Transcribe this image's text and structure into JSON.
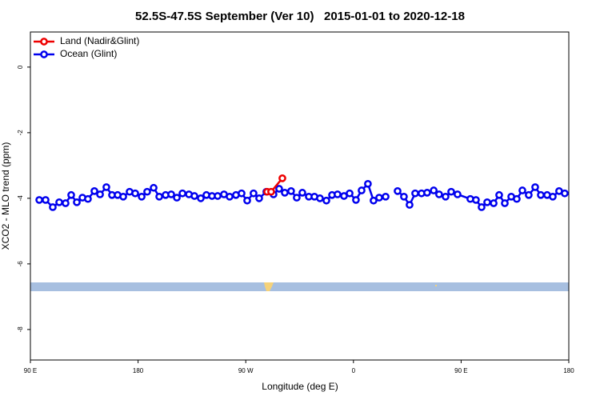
{
  "chart_data": {
    "type": "line",
    "title": "52.5S-47.5S September (Ver 10)   2015-01-01 to 2020-12-18",
    "xlabel": "Longitude (deg E)",
    "ylabel": "XCO2 - MLO trend (ppm)",
    "xlim": [
      90,
      540
    ],
    "ylim": [
      -8.93,
      1.07
    ],
    "xticks": [
      {
        "value": 90,
        "label": "90 E"
      },
      180,
      {
        "value": 270,
        "label": "90 W"
      },
      {
        "value": 360,
        "label": "0"
      },
      {
        "value": 450,
        "label": "90 E"
      },
      {
        "value": 540,
        "label": "180"
      }
    ],
    "yticks": [
      0,
      -2,
      -4,
      -6,
      -8
    ],
    "legend": "top-left",
    "series": [
      {
        "name": "Land (Nadir&Glint)",
        "color": "#ee0000",
        "x": [
          287.9,
          291.2,
          300.6
        ],
        "values": [
          -3.8,
          -3.8,
          -3.39
        ]
      },
      {
        "name": "Ocean (Glint)",
        "color": "#0000ee",
        "x": [
          97.4,
          102.7,
          108.7,
          114.1,
          119.4,
          124.1,
          128.8,
          133.5,
          138.1,
          143.5,
          148.2,
          153.5,
          158.2,
          162.9,
          167.6,
          172.9,
          177.6,
          183.0,
          187.6,
          193.0,
          197.7,
          203.0,
          207.7,
          212.4,
          217.1,
          222.5,
          227.1,
          232.4,
          237.1,
          241.8,
          246.5,
          251.8,
          256.5,
          261.8,
          266.5,
          271.2,
          276.5,
          281.2,
          287.2,
          293.2,
          297.9,
          302.6,
          307.9,
          312.6,
          317.3,
          322.7,
          327.4,
          332.0,
          337.4,
          342.1,
          346.7,
          352.1,
          356.8,
          362.1,
          366.8,
          372.1,
          376.8,
          381.5,
          386.9,
          392.0,
          396.9,
          402.2,
          406.9,
          411.6,
          416.9,
          421.6,
          427.1,
          431.6,
          437.0,
          441.7,
          447.0,
          457.7,
          462.4,
          467.1,
          471.8,
          477.2,
          481.8,
          486.5,
          491.9,
          496.5,
          501.2,
          506.5,
          511.9,
          516.6,
          521.9,
          526.6,
          531.9,
          536.6
        ],
        "values": [
          -4.05,
          -4.05,
          -4.27,
          -4.12,
          -4.15,
          -3.9,
          -4.12,
          -3.98,
          -4.02,
          -3.78,
          -3.88,
          -3.66,
          -3.9,
          -3.9,
          -3.95,
          -3.8,
          -3.85,
          -3.95,
          -3.8,
          -3.68,
          -3.95,
          -3.9,
          -3.88,
          -3.98,
          -3.85,
          -3.88,
          -3.93,
          -4.0,
          -3.9,
          -3.93,
          -3.93,
          -3.88,
          -3.95,
          -3.9,
          -3.85,
          -4.07,
          -3.85,
          -4.0,
          -3.8,
          -3.88,
          -3.71,
          -3.83,
          -3.78,
          -3.98,
          -3.83,
          -3.95,
          -3.95,
          -4.0,
          -4.07,
          -3.9,
          -3.88,
          -3.93,
          -3.85,
          -4.05,
          -3.76,
          -3.56,
          -4.07,
          -3.98,
          -3.95,
          null,
          -3.78,
          -3.95,
          -4.2,
          -3.85,
          -3.85,
          -3.83,
          -3.76,
          -3.88,
          -3.95,
          -3.8,
          -3.88,
          -4.02,
          -4.05,
          -4.27,
          -4.12,
          -4.15,
          -3.9,
          -4.15,
          -3.95,
          -4.02,
          -3.76,
          -3.9,
          -3.66,
          -3.9,
          -3.9,
          -3.95,
          -3.78,
          -3.85
        ]
      }
    ]
  }
}
